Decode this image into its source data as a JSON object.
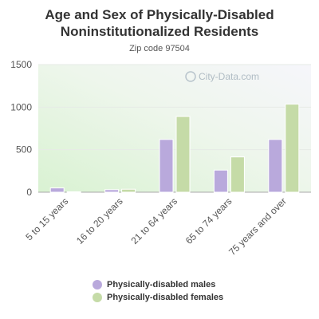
{
  "chart_data": {
    "type": "bar",
    "title": "Age and Sex of Physically-Disabled Noninstitutionalized Residents",
    "subtitle": "Zip code 97504",
    "watermark": "City-Data.com",
    "categories": [
      "5 to 15 years",
      "16 to 20 years",
      "21 to 64 years",
      "65 to 74 years",
      "75 years and over"
    ],
    "series": [
      {
        "name": "Physically-disabled males",
        "values": [
          50,
          30,
          620,
          260,
          620
        ],
        "color": "#b9a9dc"
      },
      {
        "name": "Physically-disabled females",
        "values": [
          5,
          35,
          890,
          415,
          1035
        ],
        "color": "#c5dba7"
      }
    ],
    "ylim": [
      0,
      1500
    ],
    "yticks": [
      0,
      500,
      1000,
      1500
    ],
    "grid": true,
    "legend_placement": "bottom"
  }
}
